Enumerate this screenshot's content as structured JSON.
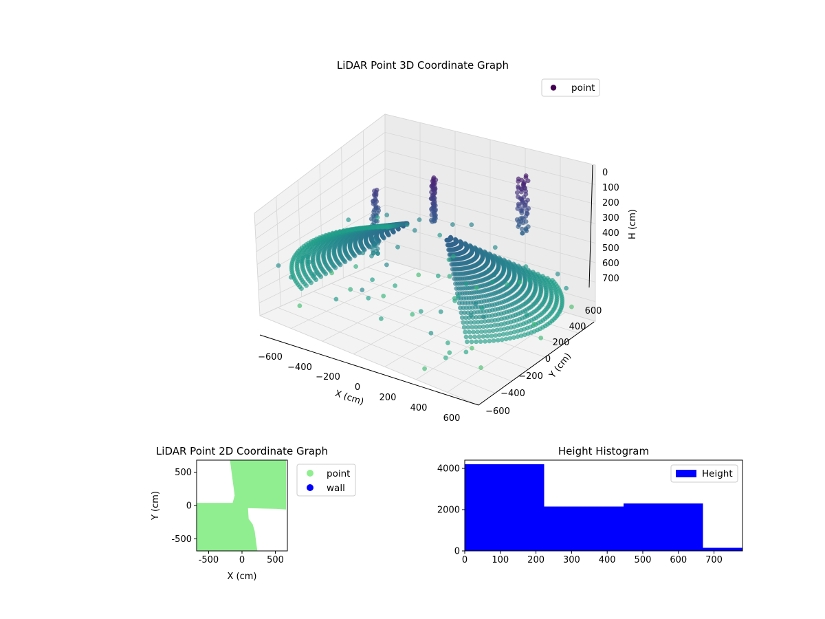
{
  "figure": {
    "width": 1200,
    "height": 900
  },
  "chart_data": [
    {
      "type": "scatter3d",
      "title": "LiDAR Point 3D Coordinate Graph",
      "xlabel": "X (cm)",
      "ylabel": "Y (cm)",
      "zlabel": "H (cm)",
      "x_ticks": [
        "−600",
        "−400",
        "−200",
        "0",
        "200",
        "400",
        "600"
      ],
      "y_ticks": [
        "−600",
        "−400",
        "−200",
        "0",
        "200",
        "400",
        "600"
      ],
      "z_ticks": [
        "0",
        "100",
        "200",
        "300",
        "400",
        "500",
        "600",
        "700"
      ],
      "xlim": [
        -700,
        700
      ],
      "ylim": [
        -700,
        700
      ],
      "zlim": [
        0,
        780
      ],
      "z_inverted": true,
      "grid": true,
      "legend": {
        "entries": [
          "point"
        ],
        "position": "upper-right",
        "color": "#440154"
      },
      "colormap": "viridis",
      "note": "dense radial LiDAR point cloud, colored by height"
    },
    {
      "type": "scatter",
      "title": "LiDAR Point 2D Coordinate Graph",
      "xlabel": "X (cm)",
      "ylabel": "Y (cm)",
      "xlim": [
        -680,
        680
      ],
      "ylim": [
        -680,
        680
      ],
      "x_ticks": [
        -500,
        0,
        500
      ],
      "y_ticks": [
        500,
        0,
        -500
      ],
      "grid": false,
      "series": [
        {
          "name": "point",
          "color": "#90ee90",
          "region": [
            [
              -180,
              680
            ],
            [
              660,
              680
            ],
            [
              660,
              -60
            ],
            [
              520,
              -50
            ],
            [
              110,
              -40
            ],
            [
              90,
              -40
            ],
            [
              100,
              -200
            ],
            [
              160,
              -280
            ],
            [
              190,
              -380
            ],
            [
              230,
              -680
            ],
            [
              -680,
              -680
            ],
            [
              -680,
              40
            ],
            [
              -140,
              40
            ],
            [
              -110,
              150
            ],
            [
              -180,
              680
            ]
          ]
        },
        {
          "name": "wall",
          "color": "#0000ff",
          "region": []
        }
      ],
      "legend": {
        "entries": [
          "point",
          "wall"
        ],
        "position": "outside-right"
      }
    },
    {
      "type": "bar",
      "title": "Height Histogram",
      "xlabel": "",
      "ylabel": "",
      "series": [
        {
          "name": "Height",
          "color": "#0000ff"
        }
      ],
      "bins": [
        {
          "x0": 0,
          "x1": 223,
          "count": 4200
        },
        {
          "x0": 223,
          "x1": 446,
          "count": 2150
        },
        {
          "x0": 446,
          "x1": 669,
          "count": 2300
        },
        {
          "x0": 669,
          "x1": 780,
          "count": 150
        }
      ],
      "xlim": [
        0,
        780
      ],
      "ylim": [
        0,
        4400
      ],
      "x_ticks": [
        0,
        100,
        200,
        300,
        400,
        500,
        600,
        700
      ],
      "y_ticks": [
        0,
        2000,
        4000
      ],
      "legend": {
        "entries": [
          "Height"
        ],
        "position": "upper-right"
      }
    }
  ]
}
